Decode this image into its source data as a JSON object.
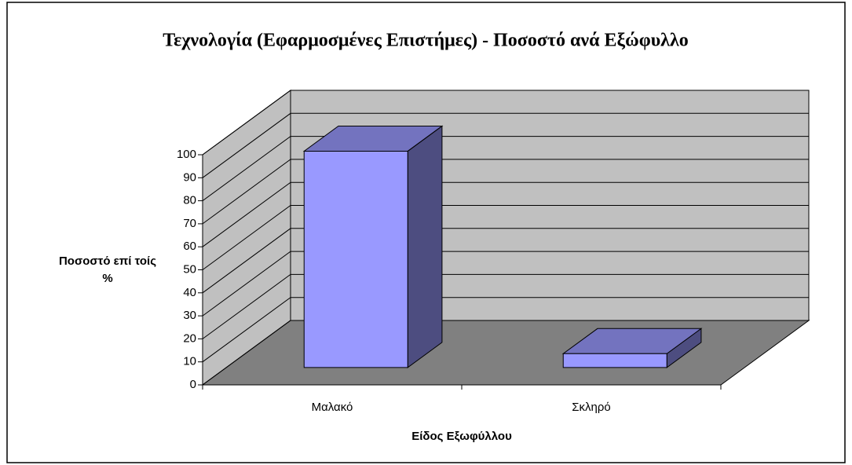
{
  "chart_data": {
    "type": "bar3d",
    "title": "Τεχνολογία (Εφαρμοσμένες Επιστήμες) - Ποσοστό ανά Εξώφυλλο",
    "xlabel": "Είδος Εξωφύλλου",
    "ylabel": "Ποσοστό επί τοίς %",
    "categories": [
      "Μαλακό",
      "Σκληρό"
    ],
    "values": [
      94,
      6
    ],
    "color": "#9999ff",
    "ylim": [
      0,
      100
    ],
    "yticks": [
      0,
      10,
      20,
      30,
      40,
      50,
      60,
      70,
      80,
      90,
      100
    ],
    "grid": true
  }
}
